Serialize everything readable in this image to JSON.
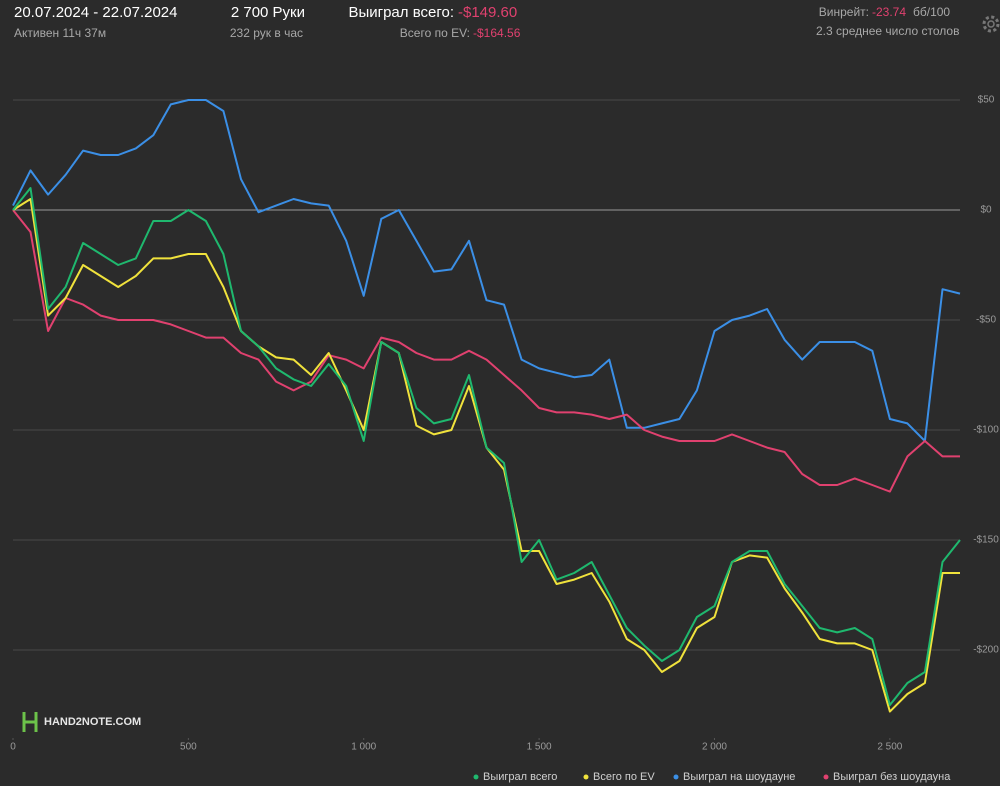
{
  "header": {
    "date_range": "20.07.2024 - 22.07.2024",
    "active": "Активен 11ч 37м",
    "hands": "2 700 Руки",
    "hands_per_hour": "232 рук в час",
    "won_label": "Выиграл всего:",
    "won_value": "-$149.60",
    "ev_label": "Всего по EV:",
    "ev_value": "-$164.56",
    "winrate_label": "Винрейт:",
    "winrate_value": "-23.74",
    "winrate_unit": "бб/100",
    "tables": "2.3 среднее число столов"
  },
  "logo": "HAND2NOTE.COM",
  "chart_data": {
    "type": "line",
    "x": [
      0,
      50,
      100,
      150,
      200,
      250,
      300,
      350,
      400,
      450,
      500,
      550,
      600,
      650,
      700,
      750,
      800,
      850,
      900,
      950,
      1000,
      1050,
      1100,
      1150,
      1200,
      1250,
      1300,
      1350,
      1400,
      1450,
      1500,
      1550,
      1600,
      1650,
      1700,
      1750,
      1800,
      1850,
      1900,
      1950,
      2000,
      2050,
      2100,
      2150,
      2200,
      2250,
      2300,
      2350,
      2400,
      2450,
      2500,
      2550,
      2600,
      2650,
      2700
    ],
    "series": [
      {
        "name": "Выиграл всего",
        "color": "#1fb86e",
        "values": [
          0,
          10,
          -45,
          -35,
          -15,
          -20,
          -25,
          -22,
          -5,
          -5,
          0,
          -5,
          -20,
          -55,
          -62,
          -72,
          -77,
          -80,
          -70,
          -80,
          -105,
          -60,
          -65,
          -90,
          -97,
          -95,
          -75,
          -108,
          -115,
          -160,
          -150,
          -168,
          -165,
          -160,
          -175,
          -190,
          -198,
          -205,
          -200,
          -185,
          -180,
          -160,
          -155,
          -155,
          -170,
          -180,
          -190,
          -192,
          -190,
          -195,
          -225,
          -215,
          -210,
          -160,
          -150
        ]
      },
      {
        "name": "Всего по EV",
        "color": "#f0e23c",
        "values": [
          0,
          5,
          -48,
          -40,
          -25,
          -30,
          -35,
          -30,
          -22,
          -22,
          -20,
          -20,
          -35,
          -55,
          -62,
          -67,
          -68,
          -75,
          -65,
          -82,
          -100,
          -60,
          -65,
          -98,
          -102,
          -100,
          -80,
          -108,
          -118,
          -155,
          -155,
          -170,
          -168,
          -165,
          -178,
          -195,
          -200,
          -210,
          -205,
          -190,
          -185,
          -160,
          -157,
          -158,
          -172,
          -183,
          -195,
          -197,
          -197,
          -200,
          -228,
          -220,
          -215,
          -165,
          -165
        ]
      },
      {
        "name": "Выиграл на шоудауне",
        "color": "#3b8fe6",
        "values": [
          2,
          18,
          7,
          16,
          27,
          25,
          25,
          28,
          34,
          48,
          50,
          50,
          45,
          14,
          -1,
          2,
          5,
          3,
          2,
          -14,
          -39,
          -4,
          0,
          -14,
          -28,
          -27,
          -14,
          -41,
          -43,
          -68,
          -72,
          -74,
          -76,
          -75,
          -68,
          -99,
          -99,
          -97,
          -95,
          -82,
          -55,
          -50,
          -48,
          -45,
          -59,
          -68,
          -60,
          -60,
          -60,
          -64,
          -95,
          -97,
          -105,
          -36,
          -38
        ]
      },
      {
        "name": "Выиграл без шоудауна",
        "color": "#e0416f",
        "values": [
          0,
          -10,
          -55,
          -40,
          -43,
          -48,
          -50,
          -50,
          -50,
          -52,
          -55,
          -58,
          -58,
          -65,
          -68,
          -78,
          -82,
          -78,
          -66,
          -68,
          -72,
          -58,
          -60,
          -65,
          -68,
          -68,
          -64,
          -68,
          -75,
          -82,
          -90,
          -92,
          -92,
          -93,
          -95,
          -93,
          -100,
          -103,
          -105,
          -105,
          -105,
          -102,
          -105,
          -108,
          -110,
          -120,
          -125,
          -125,
          -122,
          -125,
          -128,
          -112,
          -105,
          -112,
          -112
        ]
      }
    ],
    "xlim": [
      0,
      2700
    ],
    "ylim": [
      -240,
      70
    ],
    "xticks": [
      0,
      500,
      {
        "value": 1000,
        "label": "1 000"
      },
      {
        "value": 1500,
        "label": "1 500"
      },
      {
        "value": 2000,
        "label": "2 000"
      },
      {
        "value": 2500,
        "label": "2 500"
      }
    ],
    "yticks": [
      {
        "value": 50,
        "label": "$50"
      },
      {
        "value": 0,
        "label": "$0"
      },
      {
        "value": -50,
        "label": "-$50"
      },
      {
        "value": -100,
        "label": "-$100"
      },
      {
        "value": -150,
        "label": "-$150"
      },
      {
        "value": -200,
        "label": "-$200"
      }
    ],
    "grid": true
  }
}
